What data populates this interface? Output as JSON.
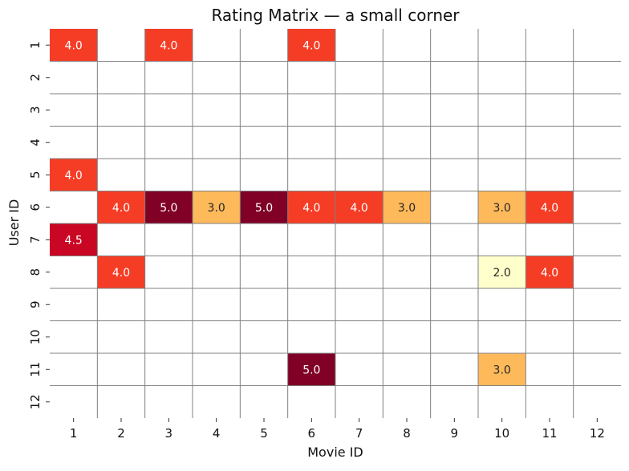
{
  "chart_data": {
    "type": "heatmap",
    "title": "Rating Matrix — a small corner",
    "xlabel": "Movie ID",
    "ylabel": "User ID",
    "x_categories": [
      "1",
      "2",
      "3",
      "4",
      "5",
      "6",
      "7",
      "8",
      "9",
      "10",
      "11",
      "12"
    ],
    "y_categories": [
      "1",
      "2",
      "3",
      "4",
      "5",
      "6",
      "7",
      "8",
      "9",
      "10",
      "11",
      "12"
    ],
    "colormap": "YlOrRd",
    "value_range": [
      2.0,
      5.0
    ],
    "grid": true,
    "grid_color": "#808080",
    "colorbar": false,
    "cells": [
      {
        "user": "1",
        "movie": "1",
        "rating": 4.0,
        "label": "4.0",
        "color": "#f53d26"
      },
      {
        "user": "1",
        "movie": "3",
        "rating": 4.0,
        "label": "4.0",
        "color": "#f53d26"
      },
      {
        "user": "1",
        "movie": "6",
        "rating": 4.0,
        "label": "4.0",
        "color": "#f53d26"
      },
      {
        "user": "5",
        "movie": "1",
        "rating": 4.0,
        "label": "4.0",
        "color": "#f53d26"
      },
      {
        "user": "6",
        "movie": "2",
        "rating": 4.0,
        "label": "4.0",
        "color": "#f53d26"
      },
      {
        "user": "6",
        "movie": "3",
        "rating": 5.0,
        "label": "5.0",
        "color": "#800026"
      },
      {
        "user": "6",
        "movie": "4",
        "rating": 3.0,
        "label": "3.0",
        "color": "#fdb95a"
      },
      {
        "user": "6",
        "movie": "5",
        "rating": 5.0,
        "label": "5.0",
        "color": "#800026"
      },
      {
        "user": "6",
        "movie": "6",
        "rating": 4.0,
        "label": "4.0",
        "color": "#f53d26"
      },
      {
        "user": "6",
        "movie": "7",
        "rating": 4.0,
        "label": "4.0",
        "color": "#f53d26"
      },
      {
        "user": "6",
        "movie": "8",
        "rating": 3.0,
        "label": "3.0",
        "color": "#fdb95a"
      },
      {
        "user": "6",
        "movie": "10",
        "rating": 3.0,
        "label": "3.0",
        "color": "#fdb95a"
      },
      {
        "user": "6",
        "movie": "11",
        "rating": 4.0,
        "label": "4.0",
        "color": "#f53d26"
      },
      {
        "user": "7",
        "movie": "1",
        "rating": 4.5,
        "label": "4.5",
        "color": "#c90623"
      },
      {
        "user": "8",
        "movie": "2",
        "rating": 4.0,
        "label": "4.0",
        "color": "#f53d26"
      },
      {
        "user": "8",
        "movie": "10",
        "rating": 2.0,
        "label": "2.0",
        "color": "#ffffcc"
      },
      {
        "user": "8",
        "movie": "11",
        "rating": 4.0,
        "label": "4.0",
        "color": "#f53d26"
      },
      {
        "user": "11",
        "movie": "6",
        "rating": 5.0,
        "label": "5.0",
        "color": "#800026"
      },
      {
        "user": "11",
        "movie": "10",
        "rating": 3.0,
        "label": "3.0",
        "color": "#fdb95a"
      }
    ]
  }
}
